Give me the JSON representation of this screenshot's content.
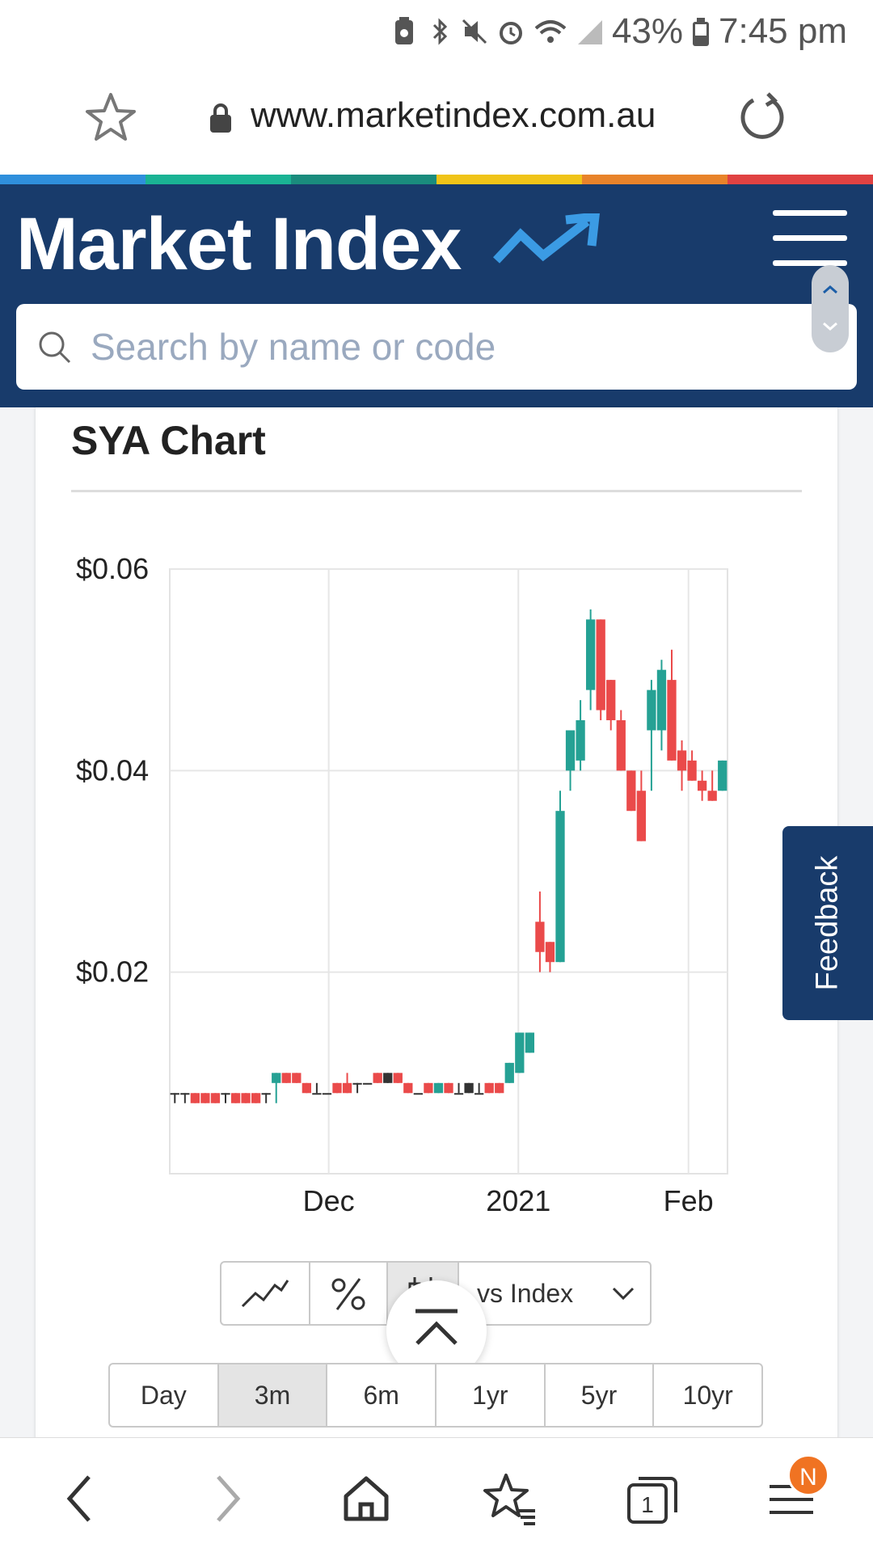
{
  "status_bar": {
    "battery": "43%",
    "time": "7:45 pm"
  },
  "browser": {
    "url": "www.marketindex.com.au"
  },
  "header": {
    "logo": "Market Index",
    "search_placeholder": "Search by name or code",
    "rainbow_colors": [
      "#2f8fdc",
      "#1ab394",
      "#1a8c7d",
      "#f0c419",
      "#e8832a",
      "#e04242"
    ]
  },
  "chart_section": {
    "title": "SYA Chart",
    "chart_data": {
      "type": "candlestick",
      "y_ticks": [
        "$0.06",
        "$0.04",
        "$0.02"
      ],
      "x_ticks": [
        "Dec",
        "2021",
        "Feb"
      ],
      "ylim": [
        0,
        0.06
      ],
      "colors": {
        "up": "#25a194",
        "down": "#ea4a4a"
      },
      "candles": [
        {
          "o": 0.008,
          "h": 0.008,
          "l": 0.007,
          "c": 0.008,
          "dir": "flat"
        },
        {
          "o": 0.008,
          "h": 0.008,
          "l": 0.007,
          "c": 0.008,
          "dir": "flat"
        },
        {
          "o": 0.008,
          "h": 0.008,
          "l": 0.007,
          "c": 0.007,
          "dir": "down"
        },
        {
          "o": 0.008,
          "h": 0.008,
          "l": 0.007,
          "c": 0.007,
          "dir": "down"
        },
        {
          "o": 0.008,
          "h": 0.008,
          "l": 0.007,
          "c": 0.007,
          "dir": "down"
        },
        {
          "o": 0.008,
          "h": 0.008,
          "l": 0.007,
          "c": 0.008,
          "dir": "flat"
        },
        {
          "o": 0.008,
          "h": 0.008,
          "l": 0.007,
          "c": 0.007,
          "dir": "down"
        },
        {
          "o": 0.008,
          "h": 0.008,
          "l": 0.007,
          "c": 0.007,
          "dir": "down"
        },
        {
          "o": 0.008,
          "h": 0.008,
          "l": 0.007,
          "c": 0.007,
          "dir": "down"
        },
        {
          "o": 0.008,
          "h": 0.008,
          "l": 0.007,
          "c": 0.008,
          "dir": "flat"
        },
        {
          "o": 0.009,
          "h": 0.01,
          "l": 0.007,
          "c": 0.01,
          "dir": "up"
        },
        {
          "o": 0.01,
          "h": 0.01,
          "l": 0.009,
          "c": 0.009,
          "dir": "down"
        },
        {
          "o": 0.01,
          "h": 0.01,
          "l": 0.009,
          "c": 0.009,
          "dir": "down"
        },
        {
          "o": 0.009,
          "h": 0.009,
          "l": 0.008,
          "c": 0.008,
          "dir": "down"
        },
        {
          "o": 0.008,
          "h": 0.009,
          "l": 0.008,
          "c": 0.008,
          "dir": "flat"
        },
        {
          "o": 0.008,
          "h": 0.008,
          "l": 0.008,
          "c": 0.008,
          "dir": "flat"
        },
        {
          "o": 0.009,
          "h": 0.009,
          "l": 0.008,
          "c": 0.008,
          "dir": "down"
        },
        {
          "o": 0.009,
          "h": 0.01,
          "l": 0.008,
          "c": 0.008,
          "dir": "down"
        },
        {
          "o": 0.009,
          "h": 0.009,
          "l": 0.008,
          "c": 0.009,
          "dir": "flat"
        },
        {
          "o": 0.009,
          "h": 0.009,
          "l": 0.009,
          "c": 0.009,
          "dir": "flat"
        },
        {
          "o": 0.01,
          "h": 0.01,
          "l": 0.009,
          "c": 0.009,
          "dir": "down"
        },
        {
          "o": 0.009,
          "h": 0.01,
          "l": 0.009,
          "c": 0.01,
          "dir": "flat"
        },
        {
          "o": 0.01,
          "h": 0.01,
          "l": 0.009,
          "c": 0.009,
          "dir": "down"
        },
        {
          "o": 0.009,
          "h": 0.009,
          "l": 0.008,
          "c": 0.008,
          "dir": "down"
        },
        {
          "o": 0.008,
          "h": 0.008,
          "l": 0.008,
          "c": 0.008,
          "dir": "flat"
        },
        {
          "o": 0.009,
          "h": 0.009,
          "l": 0.008,
          "c": 0.008,
          "dir": "down"
        },
        {
          "o": 0.008,
          "h": 0.009,
          "l": 0.008,
          "c": 0.009,
          "dir": "up"
        },
        {
          "o": 0.009,
          "h": 0.009,
          "l": 0.008,
          "c": 0.008,
          "dir": "down"
        },
        {
          "o": 0.008,
          "h": 0.009,
          "l": 0.008,
          "c": 0.008,
          "dir": "flat"
        },
        {
          "o": 0.008,
          "h": 0.009,
          "l": 0.008,
          "c": 0.009,
          "dir": "flat"
        },
        {
          "o": 0.008,
          "h": 0.009,
          "l": 0.008,
          "c": 0.008,
          "dir": "flat"
        },
        {
          "o": 0.009,
          "h": 0.009,
          "l": 0.008,
          "c": 0.008,
          "dir": "down"
        },
        {
          "o": 0.009,
          "h": 0.009,
          "l": 0.008,
          "c": 0.008,
          "dir": "down"
        },
        {
          "o": 0.009,
          "h": 0.011,
          "l": 0.009,
          "c": 0.011,
          "dir": "up"
        },
        {
          "o": 0.01,
          "h": 0.014,
          "l": 0.01,
          "c": 0.014,
          "dir": "up"
        },
        {
          "o": 0.012,
          "h": 0.014,
          "l": 0.012,
          "c": 0.014,
          "dir": "up"
        },
        {
          "o": 0.025,
          "h": 0.028,
          "l": 0.02,
          "c": 0.022,
          "dir": "down"
        },
        {
          "o": 0.023,
          "h": 0.023,
          "l": 0.02,
          "c": 0.021,
          "dir": "down"
        },
        {
          "o": 0.021,
          "h": 0.038,
          "l": 0.021,
          "c": 0.036,
          "dir": "up"
        },
        {
          "o": 0.04,
          "h": 0.044,
          "l": 0.038,
          "c": 0.044,
          "dir": "up"
        },
        {
          "o": 0.041,
          "h": 0.047,
          "l": 0.04,
          "c": 0.045,
          "dir": "up"
        },
        {
          "o": 0.048,
          "h": 0.056,
          "l": 0.046,
          "c": 0.055,
          "dir": "up"
        },
        {
          "o": 0.055,
          "h": 0.055,
          "l": 0.045,
          "c": 0.046,
          "dir": "down"
        },
        {
          "o": 0.049,
          "h": 0.049,
          "l": 0.044,
          "c": 0.045,
          "dir": "down"
        },
        {
          "o": 0.045,
          "h": 0.046,
          "l": 0.04,
          "c": 0.04,
          "dir": "down"
        },
        {
          "o": 0.04,
          "h": 0.04,
          "l": 0.036,
          "c": 0.036,
          "dir": "down"
        },
        {
          "o": 0.038,
          "h": 0.04,
          "l": 0.033,
          "c": 0.033,
          "dir": "down"
        },
        {
          "o": 0.044,
          "h": 0.049,
          "l": 0.038,
          "c": 0.048,
          "dir": "up"
        },
        {
          "o": 0.044,
          "h": 0.051,
          "l": 0.042,
          "c": 0.05,
          "dir": "up"
        },
        {
          "o": 0.049,
          "h": 0.052,
          "l": 0.041,
          "c": 0.041,
          "dir": "down"
        },
        {
          "o": 0.042,
          "h": 0.043,
          "l": 0.038,
          "c": 0.04,
          "dir": "down"
        },
        {
          "o": 0.041,
          "h": 0.042,
          "l": 0.039,
          "c": 0.039,
          "dir": "down"
        },
        {
          "o": 0.039,
          "h": 0.04,
          "l": 0.037,
          "c": 0.038,
          "dir": "down"
        },
        {
          "o": 0.038,
          "h": 0.04,
          "l": 0.037,
          "c": 0.037,
          "dir": "down"
        },
        {
          "o": 0.038,
          "h": 0.041,
          "l": 0.038,
          "c": 0.041,
          "dir": "up"
        }
      ]
    }
  },
  "controls": {
    "vs_index": "vs Index",
    "periods": [
      "Day",
      "3m",
      "6m",
      "1yr",
      "5yr",
      "10yr"
    ],
    "active_period": "3m"
  },
  "feedback": {
    "label": "Feedback"
  },
  "bottom_nav": {
    "tabs_count": "1",
    "badge": "N"
  }
}
